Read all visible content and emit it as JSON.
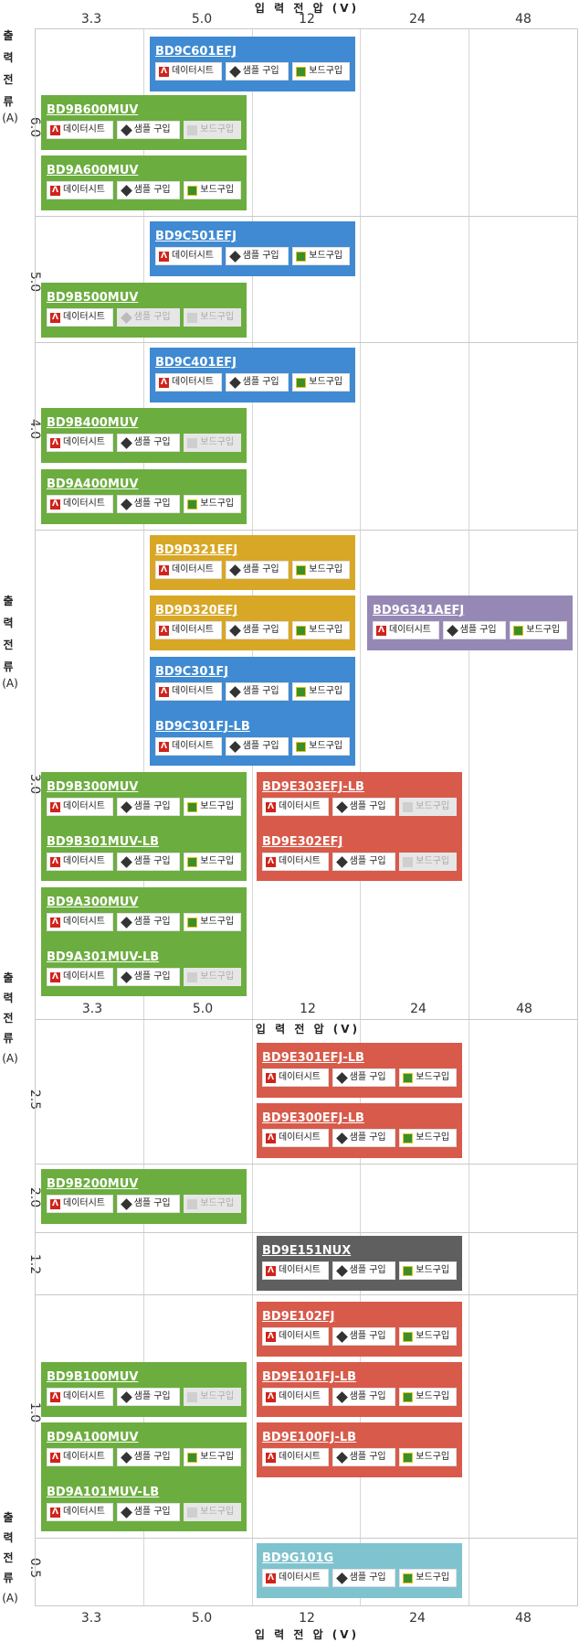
{
  "x_axis": {
    "title": "입 력 전 압 (V)",
    "ticks": [
      "3.3",
      "5.0",
      "12",
      "24",
      "48"
    ]
  },
  "y_axis": {
    "title_chars": [
      "출",
      "력",
      "전",
      "류"
    ],
    "unit": "(A)",
    "values": [
      "6.0",
      "5.0",
      "4.0",
      "3.0",
      "2.5",
      "2.0",
      "1.2",
      "1.0",
      "0.5"
    ]
  },
  "buttons": {
    "datasheet": "데이터시트",
    "sample": "샘플 구입",
    "board": "보드구입"
  },
  "colors": {
    "green": "#6cad3f",
    "blue": "#3f8ad2",
    "yellow": "#d9a726",
    "purple": "#9688b5",
    "red": "#d85a4a",
    "gray": "#5f5f5f",
    "teal": "#7fc3cf"
  },
  "products": [
    {
      "name": "BD9C601EFJ",
      "sample_enabled": true,
      "board_enabled": true
    },
    {
      "name": "BD9B600MUV",
      "sample_enabled": true,
      "board_enabled": false
    },
    {
      "name": "BD9A600MUV",
      "sample_enabled": true,
      "board_enabled": true
    },
    {
      "name": "BD9C501EFJ",
      "sample_enabled": true,
      "board_enabled": true
    },
    {
      "name": "BD9B500MUV",
      "sample_enabled": false,
      "board_enabled": false
    },
    {
      "name": "BD9C401EFJ",
      "sample_enabled": true,
      "board_enabled": true
    },
    {
      "name": "BD9B400MUV",
      "sample_enabled": true,
      "board_enabled": false
    },
    {
      "name": "BD9A400MUV",
      "sample_enabled": true,
      "board_enabled": true
    },
    {
      "name": "BD9D321EFJ",
      "sample_enabled": true,
      "board_enabled": true
    },
    {
      "name": "BD9D320EFJ",
      "sample_enabled": true,
      "board_enabled": true
    },
    {
      "name": "BD9G341AEFJ",
      "sample_enabled": true,
      "board_enabled": true
    },
    {
      "name": "BD9C301FJ",
      "sample_enabled": true,
      "board_enabled": true
    },
    {
      "name": "BD9C301FJ-LB",
      "sample_enabled": true,
      "board_enabled": true
    },
    {
      "name": "BD9B300MUV",
      "sample_enabled": true,
      "board_enabled": true
    },
    {
      "name": "BD9B301MUV-LB",
      "sample_enabled": true,
      "board_enabled": true
    },
    {
      "name": "BD9E303EFJ-LB",
      "sample_enabled": true,
      "board_enabled": false
    },
    {
      "name": "BD9E302EFJ",
      "sample_enabled": true,
      "board_enabled": false
    },
    {
      "name": "BD9A300MUV",
      "sample_enabled": true,
      "board_enabled": true
    },
    {
      "name": "BD9A301MUV-LB",
      "sample_enabled": true,
      "board_enabled": false
    },
    {
      "name": "BD9E301EFJ-LB",
      "sample_enabled": true,
      "board_enabled": true
    },
    {
      "name": "BD9E300EFJ-LB",
      "sample_enabled": true,
      "board_enabled": true
    },
    {
      "name": "BD9B200MUV",
      "sample_enabled": true,
      "board_enabled": false
    },
    {
      "name": "BD9E151NUX",
      "sample_enabled": true,
      "board_enabled": true
    },
    {
      "name": "BD9E102FJ",
      "sample_enabled": true,
      "board_enabled": true
    },
    {
      "name": "BD9B100MUV",
      "sample_enabled": true,
      "board_enabled": false
    },
    {
      "name": "BD9E101FJ-LB",
      "sample_enabled": true,
      "board_enabled": true
    },
    {
      "name": "BD9A100MUV",
      "sample_enabled": true,
      "board_enabled": true
    },
    {
      "name": "BD9E100FJ-LB",
      "sample_enabled": true,
      "board_enabled": true
    },
    {
      "name": "BD9A101MUV-LB",
      "sample_enabled": true,
      "board_enabled": false
    },
    {
      "name": "BD9G101G",
      "sample_enabled": true,
      "board_enabled": true
    }
  ]
}
